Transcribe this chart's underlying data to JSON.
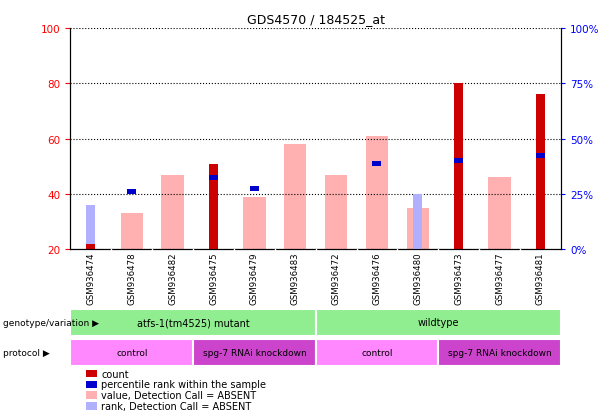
{
  "title": "GDS4570 / 184525_at",
  "samples": [
    "GSM936474",
    "GSM936478",
    "GSM936482",
    "GSM936475",
    "GSM936479",
    "GSM936483",
    "GSM936472",
    "GSM936476",
    "GSM936480",
    "GSM936473",
    "GSM936477",
    "GSM936481"
  ],
  "count": [
    22,
    null,
    null,
    51,
    null,
    null,
    null,
    null,
    null,
    80,
    null,
    76
  ],
  "percentile_rank": [
    null,
    41,
    null,
    46,
    42,
    null,
    null,
    51,
    null,
    52,
    null,
    54
  ],
  "value_absent": [
    null,
    33,
    47,
    null,
    39,
    58,
    47,
    61,
    35,
    null,
    46,
    null
  ],
  "rank_absent": [
    36,
    null,
    null,
    null,
    null,
    null,
    null,
    null,
    40,
    null,
    null,
    null
  ],
  "ylim_left": [
    20,
    100
  ],
  "yticks_left": [
    20,
    40,
    60,
    80,
    100
  ],
  "yticks_right": [
    0,
    25,
    50,
    75,
    100
  ],
  "color_count": "#cc0000",
  "color_percentile": "#0000cc",
  "color_value_absent": "#ffb0b0",
  "color_rank_absent": "#b0b0ff",
  "genotype_groups": [
    {
      "label": "atfs-1(tm4525) mutant",
      "start": 0,
      "end": 5,
      "color": "#90ee90"
    },
    {
      "label": "wildtype",
      "start": 6,
      "end": 11,
      "color": "#90ee90"
    }
  ],
  "protocol_groups": [
    {
      "label": "control",
      "start": 0,
      "end": 2,
      "color": "#ff88ff"
    },
    {
      "label": "spg-7 RNAi knockdown",
      "start": 3,
      "end": 5,
      "color": "#cc44cc"
    },
    {
      "label": "control",
      "start": 6,
      "end": 8,
      "color": "#ff88ff"
    },
    {
      "label": "spg-7 RNAi knockdown",
      "start": 9,
      "end": 11,
      "color": "#cc44cc"
    }
  ],
  "fig_width": 6.13,
  "fig_height": 4.14,
  "bg_color": "#ffffff"
}
